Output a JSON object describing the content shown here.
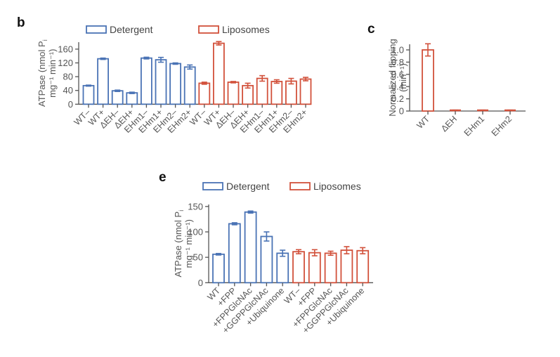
{
  "colors": {
    "detergent": "#4a73b5",
    "liposomes": "#d2513b",
    "axis": "#555555"
  },
  "chart_data": [
    {
      "panel": "b",
      "type": "bar",
      "title": "",
      "xlabel": "",
      "ylabel_line1": "ATPase (nmol P",
      "ylabel_sub": "i",
      "ylabel_line2": "mg⁻¹ min⁻¹)",
      "ylim": [
        0,
        180
      ],
      "yticks": [
        0,
        40,
        80,
        120,
        160
      ],
      "legend": [
        {
          "name": "Detergent",
          "color_key": "detergent"
        },
        {
          "name": "Liposomes",
          "color_key": "liposomes"
        }
      ],
      "legend_position": "top",
      "categories": [
        "WT–",
        "WT+",
        "ΔEH–",
        "ΔEH+",
        "EHm1–",
        "EHm1+",
        "EHm2–",
        "EHm2+",
        "WT–",
        "WT+",
        "ΔEH–",
        "ΔEH+",
        "EHm1–",
        "EHm1+",
        "EHm2–",
        "EHm2+"
      ],
      "series": [
        {
          "name": "Detergent",
          "indices": [
            0,
            1,
            2,
            3,
            4,
            5,
            6,
            7
          ],
          "values": [
            54,
            132,
            39,
            33,
            134,
            129,
            118,
            108
          ],
          "errors": [
            1.5,
            2,
            2,
            2,
            2.5,
            7,
            2,
            6
          ]
        },
        {
          "name": "Liposomes",
          "indices": [
            8,
            9,
            10,
            11,
            12,
            13,
            14,
            15
          ],
          "values": [
            61,
            177,
            64,
            54,
            75,
            66,
            67,
            73
          ],
          "errors": [
            3,
            5,
            2,
            7,
            8,
            5,
            8,
            5
          ]
        }
      ]
    },
    {
      "panel": "c",
      "type": "bar",
      "title": "",
      "xlabel": "",
      "ylabel_line1": "Normalized flipping",
      "ylabel_line2": "(min⁻¹)",
      "ylim": [
        0,
        1.1
      ],
      "yticks": [
        "0",
        "0.2",
        "0.4",
        "0.6",
        "0.8",
        "1.0"
      ],
      "ytick_values": [
        0,
        0.2,
        0.4,
        0.6,
        0.8,
        1.0
      ],
      "categories": [
        "WT",
        "ΔEH",
        "EHm1",
        "EHm2"
      ],
      "series": [
        {
          "name": "Liposomes",
          "values": [
            1.0,
            0.01,
            0.01,
            0.01
          ],
          "errors": [
            0.1,
            0.005,
            0.005,
            0.005
          ]
        }
      ]
    },
    {
      "panel": "e",
      "type": "bar",
      "title": "",
      "xlabel": "",
      "ylabel_line1": "ATPase (nmol P",
      "ylabel_sub": "i",
      "ylabel_line2": "mg⁻¹ min⁻¹)",
      "ylim": [
        0,
        150
      ],
      "yticks": [
        0,
        50,
        100,
        150
      ],
      "legend": [
        {
          "name": "Detergent",
          "color_key": "detergent"
        },
        {
          "name": "Liposomes",
          "color_key": "liposomes"
        }
      ],
      "legend_position": "top",
      "categories": [
        "WT",
        "+FPP",
        "+FPPGlcNAc",
        "+GGPPGlcNAc",
        "+Ubiquinone",
        "WT–",
        "+FPP",
        "+FPPGlcNAc",
        "+GGPPGlcNAc",
        "+Ubiquinone"
      ],
      "series": [
        {
          "name": "Detergent",
          "indices": [
            0,
            1,
            2,
            3,
            4
          ],
          "values": [
            56,
            116,
            139,
            91,
            58
          ],
          "errors": [
            1.5,
            2,
            2,
            9,
            6
          ]
        },
        {
          "name": "Liposomes",
          "indices": [
            5,
            6,
            7,
            8,
            9
          ],
          "values": [
            61,
            59,
            58,
            64,
            63
          ],
          "errors": [
            4,
            6,
            4,
            7,
            6
          ]
        }
      ]
    }
  ]
}
